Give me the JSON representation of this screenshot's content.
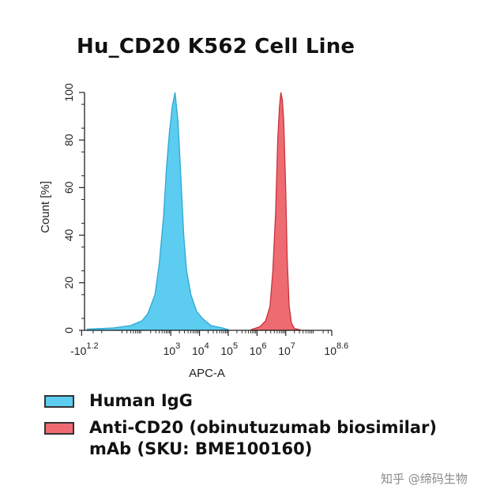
{
  "chart_data": {
    "type": "area",
    "title": "Hu_CD20 K562 Cell Line",
    "xlabel": "APC-A",
    "ylabel": "Count [%]",
    "x_scale": "log (biexponential)",
    "ylim": [
      0,
      100
    ],
    "y_ticks": [
      0,
      20,
      40,
      60,
      80,
      100
    ],
    "x_ticks": [
      {
        "base": "-10",
        "exp": "1.2",
        "value": -15.8
      },
      {
        "base": "10",
        "exp": "3",
        "value": 1000
      },
      {
        "base": "10",
        "exp": "4",
        "value": 10000
      },
      {
        "base": "10",
        "exp": "5",
        "value": 100000
      },
      {
        "base": "10",
        "exp": "6",
        "value": 1000000
      },
      {
        "base": "10",
        "exp": "7",
        "value": 10000000
      },
      {
        "base": "10",
        "exp": "8.6",
        "value": 398107171
      }
    ],
    "legend_position": "bottom",
    "series": [
      {
        "name": "Human IgG",
        "color": "#5ccdf0",
        "points": [
          [
            0.1,
            0.5
          ],
          [
            1.0,
            1.0
          ],
          [
            1.6,
            2.0
          ],
          [
            2.0,
            4.0
          ],
          [
            2.2,
            7.0
          ],
          [
            2.45,
            15.0
          ],
          [
            2.6,
            28.0
          ],
          [
            2.75,
            48.0
          ],
          [
            2.85,
            68.0
          ],
          [
            2.95,
            83.0
          ],
          [
            3.05,
            94.0
          ],
          [
            3.15,
            100.0
          ],
          [
            3.25,
            88.0
          ],
          [
            3.35,
            65.0
          ],
          [
            3.45,
            40.0
          ],
          [
            3.55,
            25.0
          ],
          [
            3.7,
            15.0
          ],
          [
            3.9,
            8.0
          ],
          [
            4.1,
            5.0
          ],
          [
            4.4,
            2.0
          ],
          [
            4.8,
            1.0
          ],
          [
            5.0,
            0.3
          ]
        ]
      },
      {
        "name": "Anti-CD20 (obinutuzumab biosimilar) mAb (SKU: BME100160)",
        "color": "#ef6b72",
        "points": [
          [
            5.8,
            0.3
          ],
          [
            6.1,
            1.5
          ],
          [
            6.3,
            4.0
          ],
          [
            6.45,
            10.0
          ],
          [
            6.55,
            25.0
          ],
          [
            6.65,
            50.0
          ],
          [
            6.72,
            80.0
          ],
          [
            6.78,
            94.0
          ],
          [
            6.83,
            100.0
          ],
          [
            6.88,
            97.0
          ],
          [
            6.93,
            88.0
          ],
          [
            7.0,
            58.0
          ],
          [
            7.05,
            30.0
          ],
          [
            7.12,
            10.0
          ],
          [
            7.2,
            3.0
          ],
          [
            7.3,
            0.8
          ],
          [
            7.5,
            0.2
          ]
        ]
      }
    ]
  },
  "legend": {
    "items": [
      {
        "label": "Human IgG",
        "color": "#5ccdf0"
      },
      {
        "label_line1": "Anti-CD20 (obinutuzumab biosimilar)",
        "label_line2": "mAb (SKU: BME100160)",
        "color": "#ef6b72"
      }
    ]
  },
  "watermark": "知乎 @缔码生物"
}
